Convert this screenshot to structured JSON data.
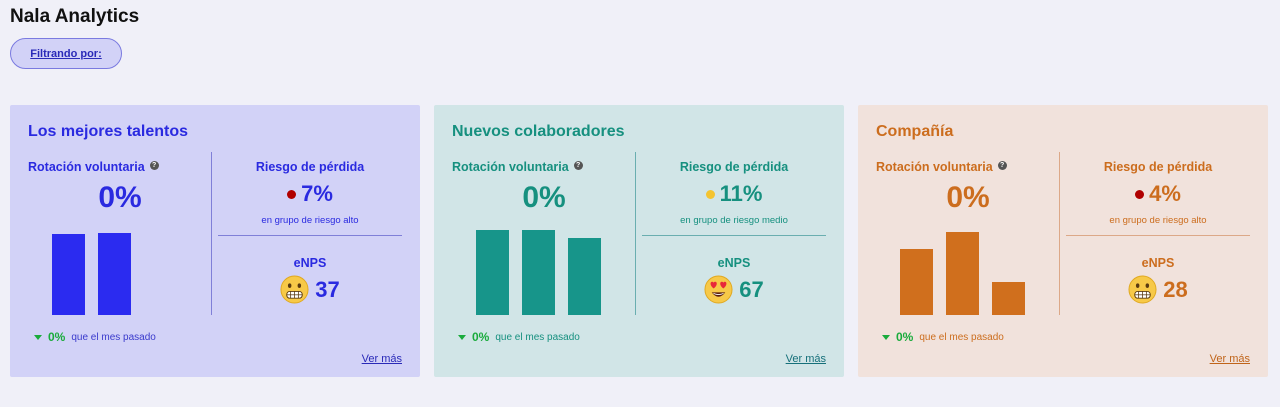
{
  "app": {
    "title": "Nala Analytics",
    "filter_label": "Filtrando por:"
  },
  "cards": [
    {
      "title": "Los mejores talentos",
      "rotation_label": "Rotación voluntaria",
      "rotation_value": "0%",
      "bars": [
        0.92,
        0.93
      ],
      "change_value": "0%",
      "change_text": "que el mes pasado",
      "risk_label": "Riesgo de pérdida",
      "risk_value": "7%",
      "risk_dot_color": "#b00000",
      "risk_group": "en grupo de riesgo alto",
      "enps_label": "eNPS",
      "enps_emoji": "grimace-emoji-icon",
      "enps_value": "37",
      "link": "Ver más"
    },
    {
      "title": "Nuevos colaboradores",
      "rotation_label": "Rotación voluntaria",
      "rotation_value": "0%",
      "bars": [
        0.97,
        0.97,
        0.88
      ],
      "change_value": "0%",
      "change_text": "que el mes pasado",
      "risk_label": "Riesgo de pérdida",
      "risk_value": "11%",
      "risk_dot_color": "#f4c430",
      "risk_group": "en grupo de riesgo medio",
      "enps_label": "eNPS",
      "enps_emoji": "heart-eyes-emoji-icon",
      "enps_value": "67",
      "link": "Ver más"
    },
    {
      "title": "Compañía",
      "rotation_label": "Rotación voluntaria",
      "rotation_value": "0%",
      "bars": [
        0.75,
        0.94,
        0.37
      ],
      "change_value": "0%",
      "change_text": "que el mes pasado",
      "risk_label": "Riesgo de pérdida",
      "risk_value": "4%",
      "risk_dot_color": "#b00000",
      "risk_group": "en grupo de riesgo alto",
      "enps_label": "eNPS",
      "enps_emoji": "grimace-emoji-icon",
      "enps_value": "28",
      "link": "Ver más"
    }
  ]
}
